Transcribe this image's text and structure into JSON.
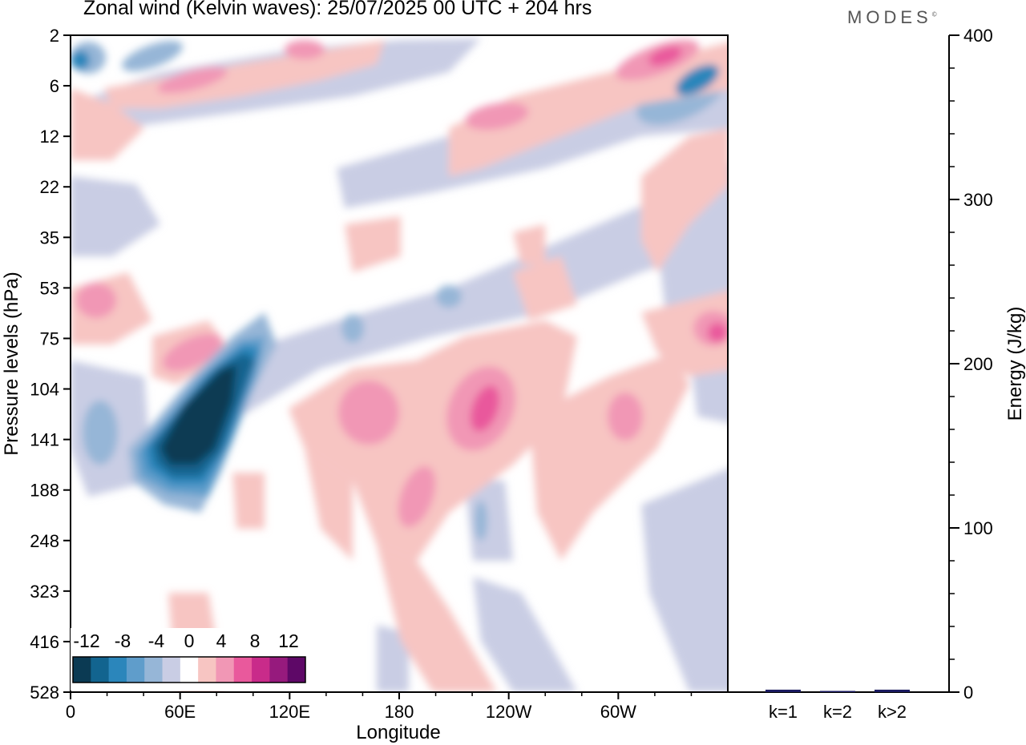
{
  "header": {
    "title": "Zonal wind (Kelvin waves):  25/07/2025  00 UTC  + 204 hrs",
    "logo": "MODES",
    "logo_mark": "©"
  },
  "chart_data": [
    {
      "type": "heatmap",
      "title": "Zonal wind (Kelvin waves):  25/07/2025  00 UTC  + 204 hrs",
      "xlabel": "Longitude",
      "ylabel": "Pressure levels (hPa)",
      "x_ticks": [
        "0",
        "60E",
        "120E",
        "180",
        "120W",
        "60W"
      ],
      "x_tick_values": [
        0,
        60,
        120,
        180,
        240,
        300
      ],
      "xlim": [
        0,
        360
      ],
      "y_ticks": [
        "2",
        "6",
        "12",
        "22",
        "35",
        "53",
        "75",
        "104",
        "141",
        "188",
        "248",
        "323",
        "416",
        "528"
      ],
      "colorbar": {
        "labels": [
          "-12",
          "-8",
          "-4",
          "0",
          "4",
          "8",
          "12"
        ],
        "levels": [
          -14,
          -12,
          -10,
          -8,
          -6,
          -4,
          -2,
          2,
          4,
          6,
          8,
          10,
          12,
          14
        ],
        "colors": [
          "#0b3a53",
          "#12648f",
          "#2b86bb",
          "#5f9dcb",
          "#96b6d7",
          "#c9cde4",
          "#ffffff",
          "#f7c5c2",
          "#f197b5",
          "#e9599c",
          "#c92b8a",
          "#961a7d",
          "#5e0867"
        ]
      },
      "features": [
        {
          "type": "min",
          "lon": 70,
          "level": 141,
          "value": -16
        },
        {
          "type": "max",
          "lon": 225,
          "level": 120,
          "value": 8
        },
        {
          "type": "max",
          "lon": 335,
          "level": 3,
          "value": 10
        },
        {
          "type": "min",
          "lon": 345,
          "level": 5,
          "value": -8
        }
      ]
    },
    {
      "type": "bar",
      "ylabel": "Energy (J/kg)",
      "categories": [
        "k=1",
        "k=2",
        "k>2"
      ],
      "values": [
        1.5,
        0.3,
        1.5
      ],
      "ylim": [
        0,
        400
      ],
      "y_ticks": [
        "0",
        "100",
        "200",
        "300",
        "400"
      ],
      "bar_color": "#1a1a60"
    }
  ]
}
